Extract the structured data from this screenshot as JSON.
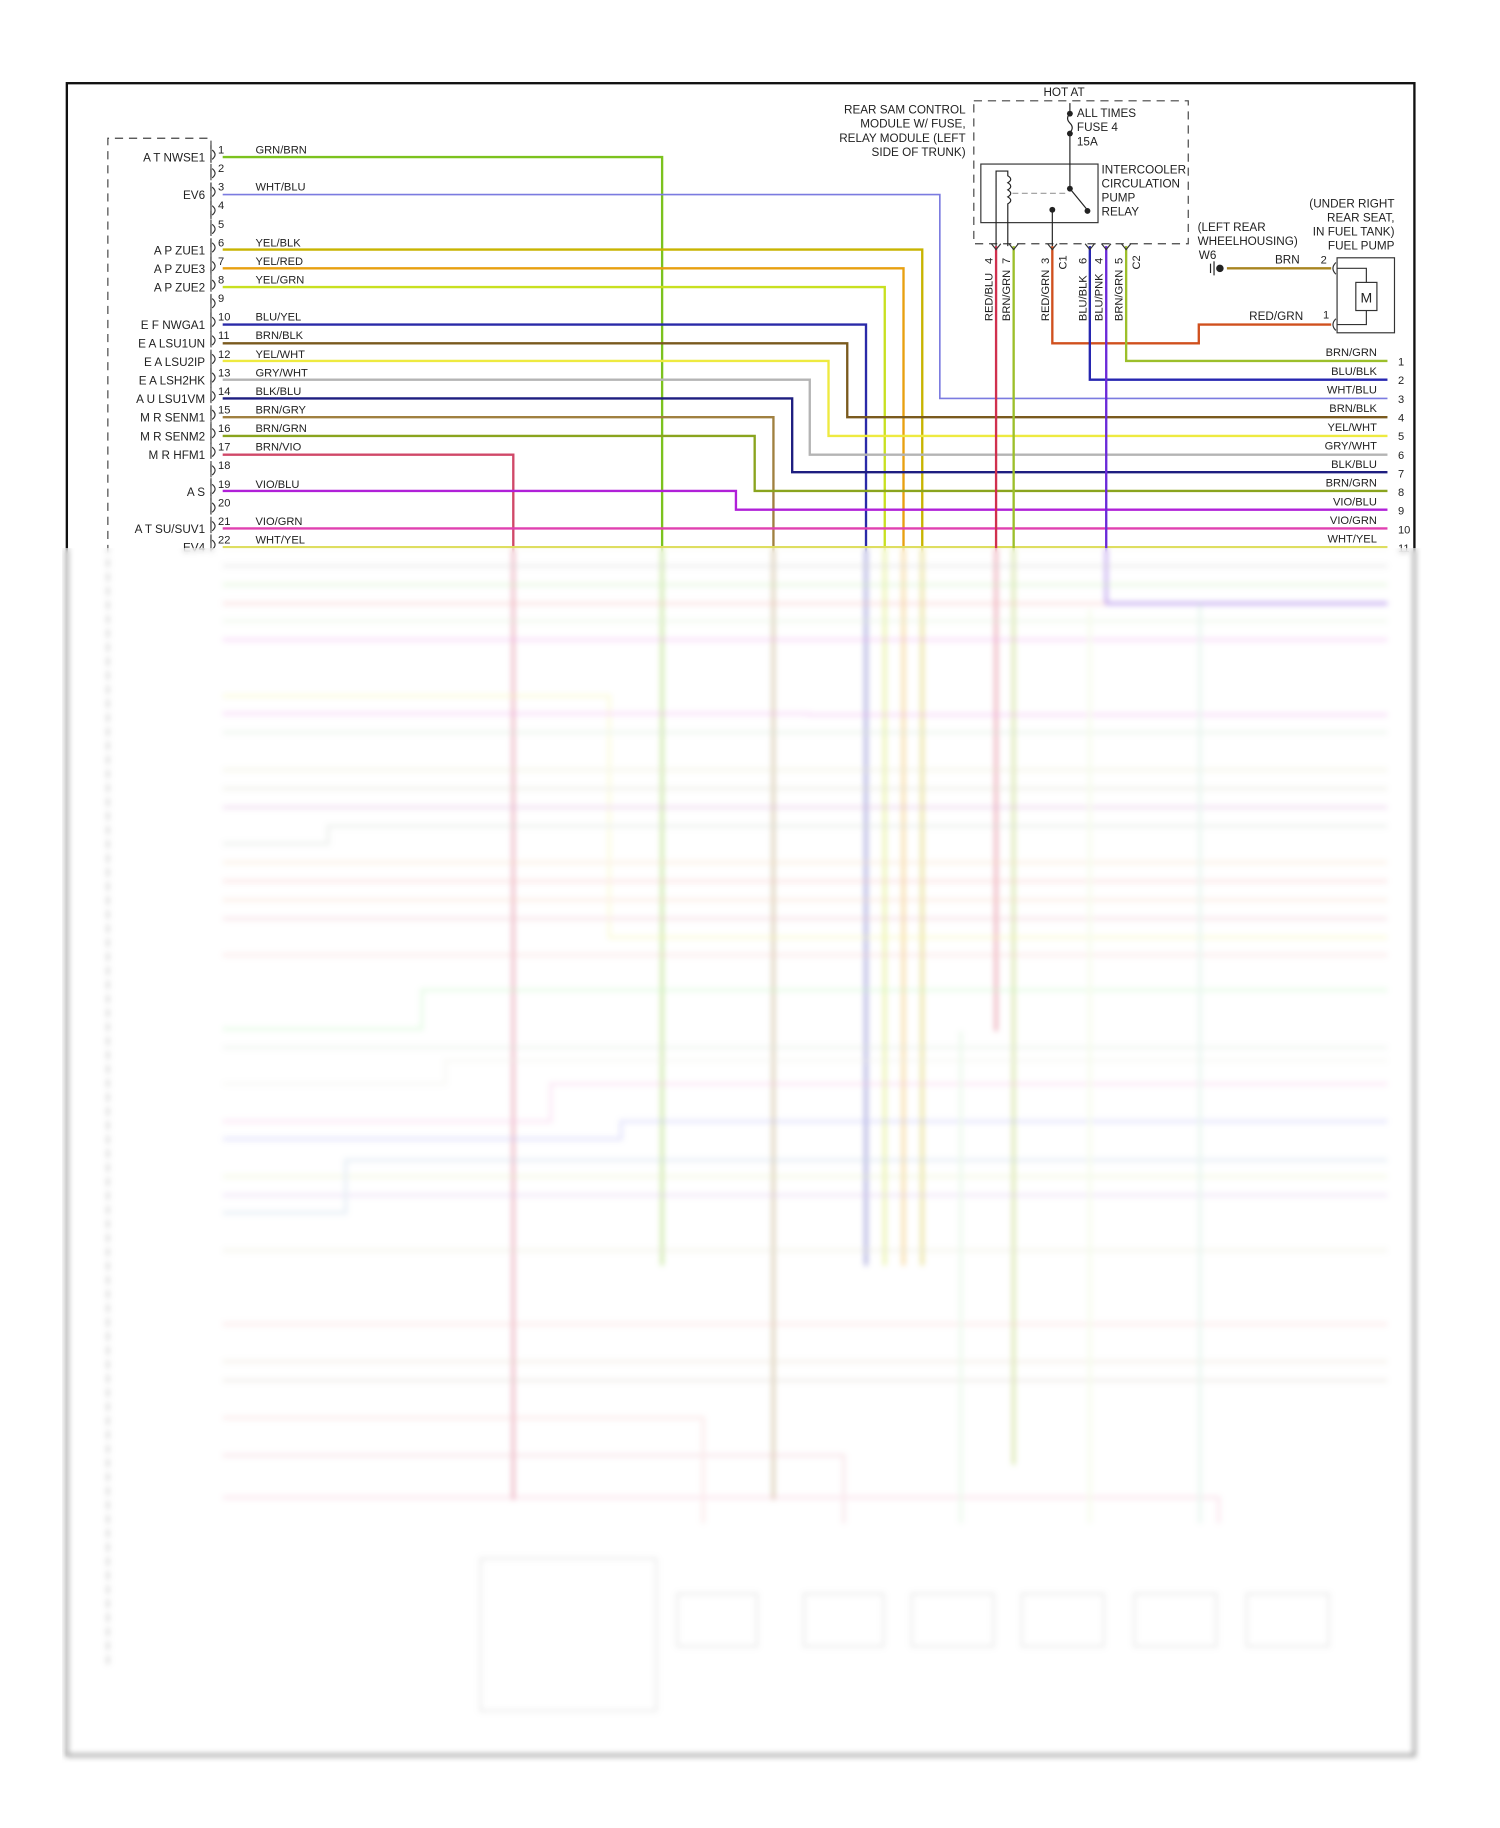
{
  "diagram": {
    "title_hot": "HOT AT",
    "fuse_block": {
      "label_lines": [
        "REAR SAM CONTROL",
        "MODULE W/ FUSE,",
        "RELAY MODULE (LEFT",
        "SIDE OF TRUNK)"
      ],
      "fuse_lines": [
        "ALL TIMES",
        "FUSE 4",
        "15A"
      ],
      "relay_lines": [
        "INTERCOOLER",
        "CIRCULATION",
        "PUMP",
        "RELAY"
      ],
      "pins": [
        {
          "pin": "4",
          "wire": "RED/BLU",
          "color": "#d0304e"
        },
        {
          "pin": "7",
          "wire": "BRN/GRN",
          "color": "#9cbf2a"
        },
        {
          "pin": "3",
          "wire": "RED/GRN",
          "color": "#d4502a",
          "connector": "C1"
        },
        {
          "pin": "6",
          "wire": "BLU/BLK",
          "color": "#2626b0"
        },
        {
          "pin": "4",
          "wire": "BLU/PNK",
          "color": "#6a2ad8"
        },
        {
          "pin": "5",
          "wire": "BRN/GRN",
          "color": "#9cbf2a",
          "connector": "C2"
        }
      ]
    },
    "ground": {
      "label_lines": [
        "(LEFT REAR",
        "WHEELHOUSING)"
      ],
      "id": "W6",
      "wire": "BRN"
    },
    "fuel_pump": {
      "label_lines": [
        "(UNDER RIGHT",
        "REAR SEAT,",
        "IN FUEL TANK)",
        "FUEL PUMP"
      ],
      "motor": "M",
      "pins": [
        {
          "pin": "2",
          "wire": "BRN"
        },
        {
          "pin": "1",
          "wire": "RED/GRN"
        }
      ]
    },
    "ecm_pins": [
      {
        "pin": "1",
        "name": "A T NWSE1",
        "wire": "GRN/BRN"
      },
      {
        "pin": "2",
        "name": "",
        "wire": ""
      },
      {
        "pin": "3",
        "name": "EV6",
        "wire": "WHT/BLU"
      },
      {
        "pin": "4",
        "name": "",
        "wire": ""
      },
      {
        "pin": "5",
        "name": "",
        "wire": ""
      },
      {
        "pin": "6",
        "name": "A P ZUE1",
        "wire": "YEL/BLK"
      },
      {
        "pin": "7",
        "name": "A P ZUE3",
        "wire": "YEL/RED"
      },
      {
        "pin": "8",
        "name": "A P ZUE2",
        "wire": "YEL/GRN"
      },
      {
        "pin": "9",
        "name": "",
        "wire": ""
      },
      {
        "pin": "10",
        "name": "E F NWGA1",
        "wire": "BLU/YEL"
      },
      {
        "pin": "11",
        "name": "E A LSU1UN",
        "wire": "BRN/BLK"
      },
      {
        "pin": "12",
        "name": "E A LSU2IP",
        "wire": "YEL/WHT"
      },
      {
        "pin": "13",
        "name": "E A LSH2HK",
        "wire": "GRY/WHT"
      },
      {
        "pin": "14",
        "name": "A U LSU1VM",
        "wire": "BLK/BLU"
      },
      {
        "pin": "15",
        "name": "M R SENM1",
        "wire": "BRN/GRY"
      },
      {
        "pin": "16",
        "name": "M R SENM2",
        "wire": "BRN/GRN"
      },
      {
        "pin": "17",
        "name": "M R HFM1",
        "wire": "BRN/VIO"
      },
      {
        "pin": "18",
        "name": "",
        "wire": ""
      },
      {
        "pin": "19",
        "name": "A S",
        "wire": "VIO/BLU"
      },
      {
        "pin": "20",
        "name": "",
        "wire": ""
      },
      {
        "pin": "21",
        "name": "A T SU/SUV1",
        "wire": "VIO/GRN"
      },
      {
        "pin": "22",
        "name": "EV4",
        "wire": "WHT/YEL"
      }
    ],
    "right_connector": [
      {
        "pin": "1",
        "wire": "BRN/GRN"
      },
      {
        "pin": "2",
        "wire": "BLU/BLK"
      },
      {
        "pin": "3",
        "wire": "WHT/BLU"
      },
      {
        "pin": "4",
        "wire": "BRN/BLK"
      },
      {
        "pin": "5",
        "wire": "YEL/WHT"
      },
      {
        "pin": "6",
        "wire": "GRY/WHT"
      },
      {
        "pin": "7",
        "wire": "BLK/BLU"
      },
      {
        "pin": "8",
        "wire": "BRN/GRN"
      },
      {
        "pin": "9",
        "wire": "VIO/BLU"
      },
      {
        "pin": "10",
        "wire": "VIO/GRN"
      },
      {
        "pin": "11",
        "wire": "WHT/YEL"
      }
    ],
    "colors": {
      "GRN/BRN": "#7cc21e",
      "WHT/BLU": "#7b7be0",
      "YEL/BLK": "#c8b400",
      "YEL/RED": "#e8a010",
      "YEL/GRN": "#c8e020",
      "BLU/YEL": "#2a2aa8",
      "BRN/BLK": "#7a5a1e",
      "YEL/WHT": "#eeea40",
      "GRY/WHT": "#b4b4b4",
      "BLK/BLU": "#1e1e80",
      "BRN/GRY": "#a08040",
      "BRN/GRN": "#8aa41e",
      "BRN/VIO": "#d04868",
      "VIO/BLU": "#b020d8",
      "VIO/GRN": "#e040b0",
      "WHT/YEL": "#dede60",
      "RED/GRN": "#d0501e",
      "BRN": "#a88420"
    }
  }
}
